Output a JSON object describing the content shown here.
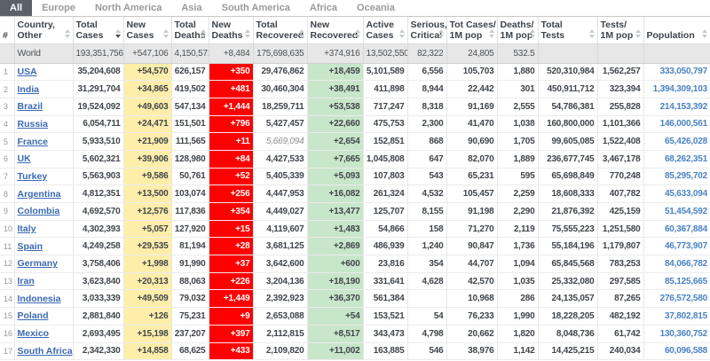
{
  "tabs": [
    {
      "label": "All",
      "active": true
    },
    {
      "label": "Europe",
      "active": false
    },
    {
      "label": "North America",
      "active": false
    },
    {
      "label": "Asia",
      "active": false
    },
    {
      "label": "South America",
      "active": false
    },
    {
      "label": "Africa",
      "active": false
    },
    {
      "label": "Oceania",
      "active": false
    }
  ],
  "columns": [
    {
      "line1": "#",
      "line2": "",
      "sortable": false
    },
    {
      "line1": "Country,",
      "line2": "Other",
      "sortable": true
    },
    {
      "line1": "Total",
      "line2": "Cases",
      "sortable": true,
      "sort_active": true
    },
    {
      "line1": "New",
      "line2": "Cases",
      "sortable": true
    },
    {
      "line1": "Total",
      "line2": "Deaths",
      "sortable": true
    },
    {
      "line1": "New",
      "line2": "Deaths",
      "sortable": true
    },
    {
      "line1": "Total",
      "line2": "Recovered",
      "sortable": true
    },
    {
      "line1": "New",
      "line2": "Recovered",
      "sortable": true
    },
    {
      "line1": "Active",
      "line2": "Cases",
      "sortable": true
    },
    {
      "line1": "Serious,",
      "line2": "Critical",
      "sortable": true
    },
    {
      "line1": "Tot Cases/",
      "line2": "1M pop",
      "sortable": true
    },
    {
      "line1": "Deaths/",
      "line2": "1M pop",
      "sortable": true
    },
    {
      "line1": "Total",
      "line2": "Tests",
      "sortable": true
    },
    {
      "line1": "Tests/",
      "line2": "1M pop",
      "sortable": true
    },
    {
      "line1": "Population",
      "line2": "",
      "sortable": true
    }
  ],
  "world_row": {
    "rank": "",
    "country": "World",
    "total_cases": "193,351,756",
    "new_cases": "+547,106",
    "total_deaths": "4,150,571",
    "new_deaths": "+8,484",
    "total_recovered": "175,698,635",
    "new_recovered": "+374,916",
    "active": "13,502,550",
    "serious": "82,322",
    "cases_1m": "24,805",
    "deaths_1m": "532.5",
    "tests": "",
    "tests_1m": "",
    "population": ""
  },
  "rows": [
    {
      "rank": "1",
      "country": "USA",
      "total_cases": "35,204,608",
      "new_cases": "+54,570",
      "total_deaths": "626,157",
      "new_deaths": "+350",
      "total_recovered": "29,476,862",
      "new_recovered": "+18,459",
      "active": "5,101,589",
      "serious": "6,556",
      "cases_1m": "105,703",
      "deaths_1m": "1,880",
      "tests": "520,310,984",
      "tests_1m": "1,562,257",
      "population": "333,050,797"
    },
    {
      "rank": "2",
      "country": "India",
      "total_cases": "31,291,704",
      "new_cases": "+34,865",
      "total_deaths": "419,502",
      "new_deaths": "+481",
      "total_recovered": "30,460,304",
      "new_recovered": "+38,491",
      "active": "411,898",
      "serious": "8,944",
      "cases_1m": "22,442",
      "deaths_1m": "301",
      "tests": "450,911,712",
      "tests_1m": "323,394",
      "population": "1,394,309,103"
    },
    {
      "rank": "3",
      "country": "Brazil",
      "total_cases": "19,524,092",
      "new_cases": "+49,603",
      "total_deaths": "547,134",
      "new_deaths": "+1,444",
      "total_recovered": "18,259,711",
      "new_recovered": "+53,538",
      "active": "717,247",
      "serious": "8,318",
      "cases_1m": "91,169",
      "deaths_1m": "2,555",
      "tests": "54,786,381",
      "tests_1m": "255,828",
      "population": "214,153,392"
    },
    {
      "rank": "4",
      "country": "Russia",
      "total_cases": "6,054,711",
      "new_cases": "+24,471",
      "total_deaths": "151,501",
      "new_deaths": "+796",
      "total_recovered": "5,427,457",
      "new_recovered": "+22,660",
      "active": "475,753",
      "serious": "2,300",
      "cases_1m": "41,470",
      "deaths_1m": "1,038",
      "tests": "160,800,000",
      "tests_1m": "1,101,366",
      "population": "146,000,561"
    },
    {
      "rank": "5",
      "country": "France",
      "total_cases": "5,933,510",
      "new_cases": "+21,909",
      "total_deaths": "111,565",
      "new_deaths": "+11",
      "total_recovered": "5,669,094",
      "recovered_estimated": true,
      "new_recovered": "+2,654",
      "active": "152,851",
      "serious": "868",
      "cases_1m": "90,690",
      "deaths_1m": "1,705",
      "tests": "99,605,085",
      "tests_1m": "1,522,408",
      "population": "65,426,028"
    },
    {
      "rank": "6",
      "country": "UK",
      "total_cases": "5,602,321",
      "new_cases": "+39,906",
      "total_deaths": "128,980",
      "new_deaths": "+84",
      "total_recovered": "4,427,533",
      "new_recovered": "+7,665",
      "active": "1,045,808",
      "serious": "647",
      "cases_1m": "82,070",
      "deaths_1m": "1,889",
      "tests": "236,677,745",
      "tests_1m": "3,467,178",
      "population": "68,262,351"
    },
    {
      "rank": "7",
      "country": "Turkey",
      "total_cases": "5,563,903",
      "new_cases": "+9,586",
      "total_deaths": "50,761",
      "new_deaths": "+52",
      "total_recovered": "5,405,339",
      "new_recovered": "+5,093",
      "active": "107,803",
      "serious": "543",
      "cases_1m": "65,231",
      "deaths_1m": "595",
      "tests": "65,698,849",
      "tests_1m": "770,248",
      "population": "85,295,702"
    },
    {
      "rank": "8",
      "country": "Argentina",
      "total_cases": "4,812,351",
      "new_cases": "+13,500",
      "total_deaths": "103,074",
      "new_deaths": "+256",
      "total_recovered": "4,447,953",
      "new_recovered": "+16,082",
      "active": "261,324",
      "serious": "4,532",
      "cases_1m": "105,457",
      "deaths_1m": "2,259",
      "tests": "18,608,333",
      "tests_1m": "407,782",
      "population": "45,633,094"
    },
    {
      "rank": "9",
      "country": "Colombia",
      "total_cases": "4,692,570",
      "new_cases": "+12,576",
      "total_deaths": "117,836",
      "new_deaths": "+354",
      "total_recovered": "4,449,027",
      "new_recovered": "+13,477",
      "active": "125,707",
      "serious": "8,155",
      "cases_1m": "91,198",
      "deaths_1m": "2,290",
      "tests": "21,876,392",
      "tests_1m": "425,159",
      "population": "51,454,592"
    },
    {
      "rank": "10",
      "country": "Italy",
      "total_cases": "4,302,393",
      "new_cases": "+5,057",
      "total_deaths": "127,920",
      "new_deaths": "+15",
      "total_recovered": "4,119,607",
      "new_recovered": "+1,483",
      "active": "54,866",
      "serious": "158",
      "cases_1m": "71,270",
      "deaths_1m": "2,119",
      "tests": "75,555,223",
      "tests_1m": "1,251,580",
      "population": "60,367,884"
    },
    {
      "rank": "11",
      "country": "Spain",
      "total_cases": "4,249,258",
      "new_cases": "+29,535",
      "total_deaths": "81,194",
      "new_deaths": "+28",
      "total_recovered": "3,681,125",
      "new_recovered": "+2,869",
      "active": "486,939",
      "serious": "1,240",
      "cases_1m": "90,847",
      "deaths_1m": "1,736",
      "tests": "55,184,196",
      "tests_1m": "1,179,807",
      "population": "46,773,907"
    },
    {
      "rank": "12",
      "country": "Germany",
      "total_cases": "3,758,406",
      "new_cases": "+1,998",
      "total_deaths": "91,990",
      "new_deaths": "+37",
      "total_recovered": "3,642,600",
      "new_recovered": "+600",
      "active": "23,816",
      "serious": "354",
      "cases_1m": "44,707",
      "deaths_1m": "1,094",
      "tests": "65,845,568",
      "tests_1m": "783,253",
      "population": "84,066,782"
    },
    {
      "rank": "13",
      "country": "Iran",
      "total_cases": "3,623,840",
      "new_cases": "+20,313",
      "total_deaths": "88,063",
      "new_deaths": "+226",
      "total_recovered": "3,204,136",
      "new_recovered": "+18,190",
      "active": "331,641",
      "serious": "4,628",
      "cases_1m": "42,570",
      "deaths_1m": "1,035",
      "tests": "25,332,080",
      "tests_1m": "297,585",
      "population": "85,125,665"
    },
    {
      "rank": "14",
      "country": "Indonesia",
      "total_cases": "3,033,339",
      "new_cases": "+49,509",
      "total_deaths": "79,032",
      "new_deaths": "+1,449",
      "total_recovered": "2,392,923",
      "new_recovered": "+36,370",
      "active": "561,384",
      "serious": "",
      "cases_1m": "10,968",
      "deaths_1m": "286",
      "tests": "24,135,057",
      "tests_1m": "87,265",
      "population": "276,572,580"
    },
    {
      "rank": "15",
      "country": "Poland",
      "total_cases": "2,881,840",
      "new_cases": "+126",
      "total_deaths": "75,231",
      "new_deaths": "+9",
      "total_recovered": "2,653,088",
      "new_recovered": "+54",
      "active": "153,521",
      "serious": "54",
      "cases_1m": "76,233",
      "deaths_1m": "1,990",
      "tests": "18,228,205",
      "tests_1m": "482,192",
      "population": "37,802,815"
    },
    {
      "rank": "16",
      "country": "Mexico",
      "total_cases": "2,693,495",
      "new_cases": "+15,198",
      "total_deaths": "237,207",
      "new_deaths": "+397",
      "total_recovered": "2,112,815",
      "new_recovered": "+8,517",
      "active": "343,473",
      "serious": "4,798",
      "cases_1m": "20,662",
      "deaths_1m": "1,820",
      "tests": "8,048,736",
      "tests_1m": "61,742",
      "population": "130,360,752"
    },
    {
      "rank": "17",
      "country": "South Africa",
      "total_cases": "2,342,330",
      "new_cases": "+14,858",
      "total_deaths": "68,625",
      "new_deaths": "+433",
      "total_recovered": "2,109,820",
      "new_recovered": "+11,002",
      "active": "163,885",
      "serious": "546",
      "cases_1m": "38,976",
      "deaths_1m": "1,142",
      "tests": "14,425,215",
      "tests_1m": "240,034",
      "population": "60,096,588"
    }
  ]
}
